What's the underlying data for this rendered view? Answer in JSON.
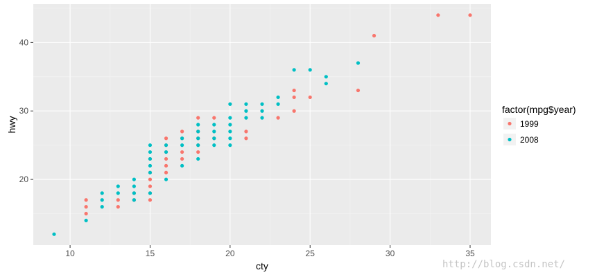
{
  "chart_data": {
    "type": "scatter",
    "xlabel": "cty",
    "ylabel": "hwy",
    "xlim": [
      7.7,
      36.3
    ],
    "ylim": [
      10.4,
      45.6
    ],
    "x_ticks": [
      10,
      15,
      20,
      25,
      30,
      35
    ],
    "y_ticks": [
      20,
      30,
      40
    ],
    "grid": true,
    "panel_background": "#ebebeb",
    "legend": {
      "title": "factor(mpg$year)",
      "position": "right",
      "entries": [
        "1999",
        "2008"
      ]
    },
    "series": [
      {
        "name": "1999",
        "color": "#f8766d",
        "points": [
          [
            11,
            17
          ],
          [
            11,
            16
          ],
          [
            11,
            15
          ],
          [
            13,
            17
          ],
          [
            13,
            16
          ],
          [
            14,
            17
          ],
          [
            14,
            18
          ],
          [
            15,
            17
          ],
          [
            15,
            18
          ],
          [
            15,
            19
          ],
          [
            15,
            20
          ],
          [
            15,
            21
          ],
          [
            15,
            23
          ],
          [
            16,
            21
          ],
          [
            16,
            22
          ],
          [
            16,
            23
          ],
          [
            16,
            24
          ],
          [
            16,
            25
          ],
          [
            16,
            26
          ],
          [
            17,
            23
          ],
          [
            17,
            24
          ],
          [
            17,
            26
          ],
          [
            17,
            27
          ],
          [
            18,
            24
          ],
          [
            18,
            25
          ],
          [
            18,
            26
          ],
          [
            18,
            27
          ],
          [
            18,
            29
          ],
          [
            19,
            26
          ],
          [
            19,
            29
          ],
          [
            21,
            26
          ],
          [
            21,
            27
          ],
          [
            23,
            29
          ],
          [
            24,
            30
          ],
          [
            24,
            32
          ],
          [
            24,
            33
          ],
          [
            25,
            32
          ],
          [
            28,
            33
          ],
          [
            29,
            41
          ],
          [
            33,
            44
          ],
          [
            35,
            44
          ]
        ]
      },
      {
        "name": "2008",
        "color": "#00bfc4",
        "points": [
          [
            9,
            12
          ],
          [
            11,
            14
          ],
          [
            12,
            16
          ],
          [
            12,
            17
          ],
          [
            12,
            18
          ],
          [
            13,
            18
          ],
          [
            13,
            19
          ],
          [
            14,
            17
          ],
          [
            14,
            18
          ],
          [
            14,
            19
          ],
          [
            14,
            20
          ],
          [
            15,
            18
          ],
          [
            15,
            21
          ],
          [
            15,
            22
          ],
          [
            15,
            23
          ],
          [
            15,
            24
          ],
          [
            15,
            25
          ],
          [
            16,
            20
          ],
          [
            16,
            24
          ],
          [
            16,
            25
          ],
          [
            17,
            22
          ],
          [
            17,
            25
          ],
          [
            17,
            26
          ],
          [
            18,
            23
          ],
          [
            18,
            25
          ],
          [
            18,
            26
          ],
          [
            18,
            27
          ],
          [
            18,
            28
          ],
          [
            19,
            25
          ],
          [
            19,
            26
          ],
          [
            19,
            27
          ],
          [
            19,
            28
          ],
          [
            20,
            25
          ],
          [
            20,
            26
          ],
          [
            20,
            27
          ],
          [
            20,
            28
          ],
          [
            20,
            29
          ],
          [
            20,
            31
          ],
          [
            21,
            29
          ],
          [
            21,
            30
          ],
          [
            21,
            31
          ],
          [
            22,
            29
          ],
          [
            22,
            30
          ],
          [
            22,
            31
          ],
          [
            23,
            31
          ],
          [
            23,
            32
          ],
          [
            24,
            36
          ],
          [
            25,
            36
          ],
          [
            26,
            34
          ],
          [
            26,
            35
          ],
          [
            28,
            37
          ]
        ]
      }
    ]
  },
  "watermark": "http://blog.csdn.net/"
}
